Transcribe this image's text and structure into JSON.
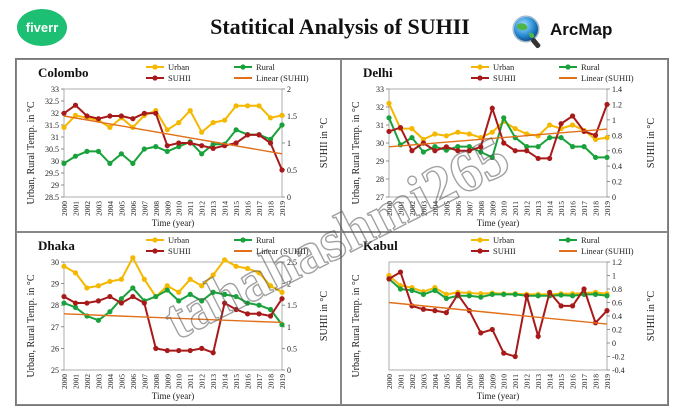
{
  "header": {
    "title": "Statitical Analysis of SUHII",
    "fiverr_logo": "fiverr",
    "arcmap_logo": "ArcMap"
  },
  "watermark": "tahahashmi265",
  "colors": {
    "urban": "#f5b800",
    "rural": "#19a23c",
    "suhii": "#a81a1a",
    "linear": "#e0701a"
  },
  "chart_data": [
    {
      "type": "line",
      "city": "Colombo",
      "xlabel": "Time (year)",
      "ylabel_left": "Urban, Rural Temp. in °C",
      "ylabel_right": "SUHII in °C",
      "x": [
        "2000",
        "2001",
        "2002",
        "2003",
        "2004",
        "2005",
        "2006",
        "2007",
        "2008",
        "2009",
        "2010",
        "2011",
        "2012",
        "2013",
        "2014",
        "2015",
        "2016",
        "2017",
        "2018",
        "2019"
      ],
      "yticks_left": [
        "28.5",
        "29",
        "29.5",
        "30",
        "30.5",
        "31",
        "31.5",
        "32",
        "32.5",
        "33"
      ],
      "yticks_right": [
        "0",
        "0.5",
        "1",
        "1.5",
        "2"
      ],
      "ylim_left": [
        28.5,
        33
      ],
      "ylim_right": [
        0,
        2
      ],
      "legend": [
        "Urban",
        "Rural",
        "SUHII",
        "Linear (SUHII)"
      ],
      "series": [
        {
          "name": "Urban",
          "axis": "left",
          "values": [
            31.4,
            31.9,
            31.8,
            31.7,
            31.4,
            31.8,
            31.4,
            31.9,
            32.1,
            31.3,
            31.6,
            32.1,
            31.2,
            31.6,
            31.7,
            32.3,
            32.3,
            32.3,
            31.8,
            31.9
          ]
        },
        {
          "name": "Rural",
          "axis": "left",
          "values": [
            29.9,
            30.2,
            30.4,
            30.4,
            29.9,
            30.3,
            29.9,
            30.5,
            30.6,
            30.4,
            30.6,
            30.8,
            30.3,
            30.7,
            30.7,
            31.3,
            31.1,
            31.1,
            30.9,
            31.5
          ]
        },
        {
          "name": "SUHII",
          "axis": "right",
          "values": [
            1.55,
            1.7,
            1.5,
            1.45,
            1.5,
            1.5,
            1.45,
            1.55,
            1.55,
            0.95,
            1.0,
            1.0,
            0.95,
            0.9,
            0.95,
            1.0,
            1.15,
            1.15,
            1.0,
            0.5
          ]
        }
      ],
      "trend": {
        "name": "Linear (SUHII)",
        "axis": "right",
        "values": [
          1.5,
          0.8
        ]
      }
    },
    {
      "type": "line",
      "city": "Delhi",
      "xlabel": "Time (year)",
      "ylabel_left": "Urban, Rural Temp. in °C",
      "ylabel_right": "SUHII in °C",
      "x": [
        "2000",
        "2001",
        "2002",
        "2003",
        "2004",
        "2005",
        "2006",
        "2007",
        "2008",
        "2009",
        "2010",
        "2011",
        "2012",
        "2013",
        "2014",
        "2015",
        "2016",
        "2017",
        "2018",
        "2019"
      ],
      "yticks_left": [
        "27",
        "28",
        "29",
        "30",
        "31",
        "32",
        "33"
      ],
      "yticks_right": [
        "0",
        "0.2",
        "0.4",
        "0.6",
        "0.8",
        "1",
        "1.2",
        "1.4"
      ],
      "ylim_left": [
        27,
        33
      ],
      "ylim_right": [
        0,
        1.4
      ],
      "legend": [
        "Urban",
        "Rural",
        "SUHII",
        "Linear (SUHII)"
      ],
      "series": [
        {
          "name": "Urban",
          "axis": "left",
          "values": [
            32.2,
            30.8,
            30.8,
            30.2,
            30.5,
            30.4,
            30.6,
            30.5,
            30.3,
            30.6,
            31.2,
            30.8,
            30.5,
            30.4,
            31.0,
            30.8,
            31.0,
            30.7,
            30.2,
            30.3
          ]
        },
        {
          "name": "Rural",
          "axis": "left",
          "values": [
            31.4,
            29.9,
            30.3,
            29.5,
            29.8,
            29.6,
            29.8,
            29.8,
            29.5,
            29.2,
            31.4,
            30.3,
            29.8,
            29.8,
            30.3,
            30.3,
            29.8,
            29.8,
            29.2,
            29.2
          ]
        },
        {
          "name": "SUHII",
          "axis": "right",
          "values": [
            0.85,
            0.9,
            0.6,
            0.7,
            0.6,
            0.65,
            0.6,
            0.6,
            0.65,
            1.15,
            0.7,
            0.6,
            0.6,
            0.5,
            0.5,
            0.95,
            1.05,
            0.85,
            0.8,
            1.2
          ]
        }
      ],
      "trend": {
        "name": "Linear (SUHII)",
        "axis": "right",
        "values": [
          0.65,
          0.88
        ]
      }
    },
    {
      "type": "line",
      "city": "Dhaka",
      "xlabel": "Time (year)",
      "ylabel_left": "Urban, Rural Temp. in °C",
      "ylabel_right": "SUHII in °C",
      "x": [
        "2000",
        "2001",
        "2002",
        "2003",
        "2004",
        "2005",
        "2006",
        "2007",
        "2008",
        "2009",
        "2010",
        "2011",
        "2012",
        "2013",
        "2014",
        "2015",
        "2016",
        "2017",
        "2018",
        "2019"
      ],
      "yticks_left": [
        "25",
        "26",
        "27",
        "28",
        "29",
        "30"
      ],
      "yticks_right": [
        "0",
        "0.5",
        "1",
        "1.5",
        "2",
        "2.5"
      ],
      "ylim_left": [
        25,
        30
      ],
      "ylim_right": [
        0,
        2.5
      ],
      "legend": [
        "Urban",
        "Rural",
        "SUHII",
        "Linear (SUHII)"
      ],
      "series": [
        {
          "name": "Urban",
          "axis": "left",
          "values": [
            29.8,
            29.5,
            28.8,
            28.9,
            29.1,
            29.2,
            30.2,
            29.2,
            28.4,
            28.9,
            28.6,
            29.2,
            28.9,
            29.4,
            30.1,
            29.8,
            29.7,
            29.5,
            28.9,
            28.6
          ]
        },
        {
          "name": "Rural",
          "axis": "left",
          "values": [
            28.1,
            27.9,
            27.5,
            27.3,
            27.7,
            28.3,
            28.8,
            28.2,
            28.4,
            28.7,
            28.2,
            28.5,
            28.2,
            28.6,
            28.5,
            28.4,
            28.1,
            28.0,
            27.8,
            27.1
          ]
        },
        {
          "name": "SUHII",
          "axis": "right",
          "values": [
            1.7,
            1.55,
            1.55,
            1.6,
            1.7,
            1.55,
            1.7,
            1.55,
            0.5,
            0.45,
            0.45,
            0.45,
            0.5,
            0.4,
            1.55,
            1.4,
            1.3,
            1.3,
            1.25,
            1.65
          ]
        }
      ],
      "trend": {
        "name": "Linear (SUHII)",
        "axis": "right",
        "values": [
          1.3,
          1.1
        ]
      }
    },
    {
      "type": "line",
      "city": "Kabul",
      "xlabel": "Time (year)",
      "ylabel_left": "Urban, Rural Temp. in °C",
      "ylabel_right": "SUHII in °C",
      "x": [
        "2000",
        "2001",
        "2002",
        "2003",
        "2004",
        "2005",
        "2006",
        "2007",
        "2008",
        "2009",
        "2010",
        "2011",
        "2012",
        "2013",
        "2014",
        "2015",
        "2016",
        "2017",
        "2018",
        "2019"
      ],
      "yticks_left": [],
      "yticks_right": [
        "-0.4",
        "-0.2",
        "0",
        "0.2",
        "0.4",
        "0.6",
        "0.8",
        "1",
        "1.2"
      ],
      "ylim_left": [
        0,
        1
      ],
      "ylim_right": [
        -0.4,
        1.2
      ],
      "legend": [
        "Urban",
        "Rural",
        "SUHII",
        "Linear (SUHII)"
      ],
      "series": [
        {
          "name": "Urban",
          "axis": "right",
          "values": [
            1.0,
            0.85,
            0.82,
            0.76,
            0.82,
            0.72,
            0.75,
            0.74,
            0.73,
            0.74,
            0.73,
            0.73,
            0.72,
            0.72,
            0.72,
            0.73,
            0.73,
            0.74,
            0.75,
            0.73
          ]
        },
        {
          "name": "Rural",
          "axis": "right",
          "values": [
            0.95,
            0.8,
            0.78,
            0.72,
            0.78,
            0.66,
            0.7,
            0.7,
            0.68,
            0.72,
            0.72,
            0.72,
            0.7,
            0.7,
            0.7,
            0.71,
            0.7,
            0.72,
            0.72,
            0.7
          ]
        },
        {
          "name": "SUHII",
          "axis": "right",
          "values": [
            0.95,
            1.05,
            0.55,
            0.5,
            0.48,
            0.45,
            0.72,
            0.48,
            0.15,
            0.2,
            -0.15,
            -0.2,
            0.7,
            0.1,
            0.75,
            0.55,
            0.55,
            0.8,
            0.3,
            0.48
          ]
        }
      ],
      "trend": {
        "name": "Linear (SUHII)",
        "axis": "right",
        "values": [
          0.6,
          0.28
        ]
      }
    }
  ]
}
